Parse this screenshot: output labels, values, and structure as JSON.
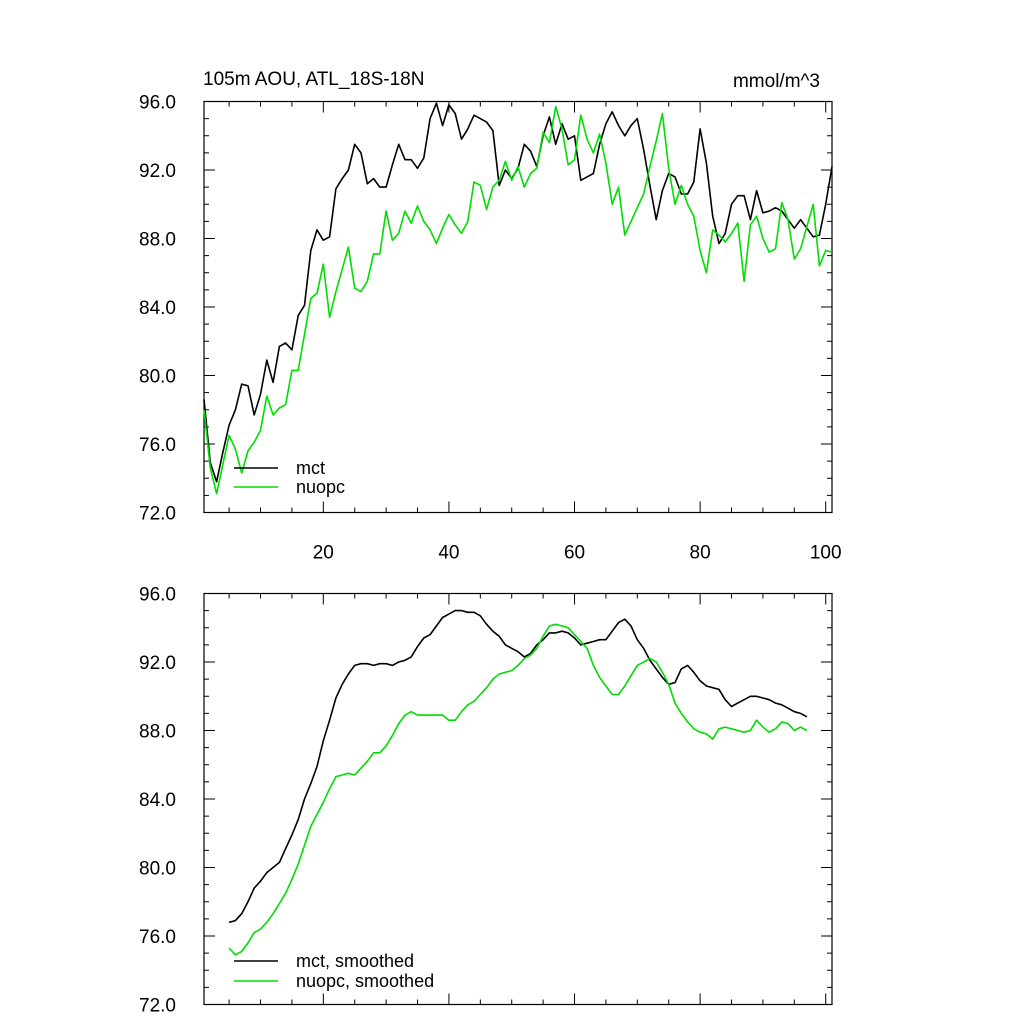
{
  "chart_data": [
    {
      "type": "line",
      "title": "105m AOU, ATL_18S-18N",
      "units": "mmol/m^3",
      "xlim": [
        1,
        101
      ],
      "ylim": [
        72,
        96
      ],
      "x_ticks": [
        20,
        40,
        60,
        80,
        100
      ],
      "x_tick_labels": [
        "20",
        "40",
        "60",
        "80",
        "100"
      ],
      "y_ticks": [
        72,
        76,
        80,
        84,
        88,
        92,
        96
      ],
      "y_tick_labels": [
        "72.0",
        "76.0",
        "80.0",
        "84.0",
        "88.0",
        "92.0",
        "96.0"
      ],
      "grid": false,
      "legend": "bottom-left",
      "series": [
        {
          "name": "mct",
          "color": "#000000",
          "x": [
            1,
            2,
            3,
            4,
            5,
            6,
            7,
            8,
            9,
            10,
            11,
            12,
            13,
            14,
            15,
            16,
            17,
            18,
            19,
            20,
            21,
            22,
            23,
            24,
            25,
            26,
            27,
            28,
            29,
            30,
            31,
            32,
            33,
            34,
            35,
            36,
            37,
            38,
            39,
            40,
            41,
            42,
            43,
            44,
            45,
            46,
            47,
            48,
            49,
            50,
            51,
            52,
            53,
            54,
            55,
            56,
            57,
            58,
            59,
            60,
            61,
            62,
            63,
            64,
            65,
            66,
            67,
            68,
            69,
            70,
            71,
            72,
            73,
            74,
            75,
            76,
            77,
            78,
            79,
            80,
            81,
            82,
            83,
            84,
            85,
            86,
            87,
            88,
            89,
            90,
            91,
            92,
            93,
            94,
            95,
            96,
            97,
            98,
            99,
            100,
            101
          ],
          "values": [
            78.6,
            74.9,
            73.8,
            75.5,
            77.1,
            78.0,
            79.5,
            79.4,
            77.7,
            78.9,
            80.9,
            79.6,
            81.7,
            81.9,
            81.5,
            83.5,
            84.1,
            87.3,
            88.5,
            87.9,
            88.1,
            90.9,
            91.5,
            92.0,
            93.5,
            93.0,
            91.2,
            91.5,
            91.0,
            91.0,
            92.3,
            93.5,
            92.6,
            92.6,
            92.1,
            92.7,
            95.0,
            95.9,
            94.6,
            95.8,
            95.3,
            93.8,
            94.4,
            95.2,
            95.0,
            94.8,
            94.3,
            91.1,
            92.0,
            91.5,
            92.1,
            93.5,
            93.1,
            92.2,
            94.0,
            95.1,
            93.5,
            94.7,
            93.8,
            94.0,
            91.4,
            91.6,
            91.8,
            93.5,
            94.7,
            95.4,
            94.6,
            94.0,
            94.6,
            95.0,
            93.2,
            91.1,
            89.1,
            90.8,
            91.8,
            91.6,
            90.6,
            90.6,
            91.3,
            94.4,
            92.4,
            89.3,
            87.7,
            88.3,
            90.0,
            90.5,
            90.5,
            89.1,
            90.8,
            89.5,
            89.6,
            89.8,
            89.6,
            89.1,
            88.6,
            89.1,
            88.6,
            88.1,
            88.2,
            90.0,
            92.2
          ]
        },
        {
          "name": "nuopc",
          "color": "#00dd00",
          "x": [
            1,
            2,
            3,
            4,
            5,
            6,
            7,
            8,
            9,
            10,
            11,
            12,
            13,
            14,
            15,
            16,
            17,
            18,
            19,
            20,
            21,
            22,
            23,
            24,
            25,
            26,
            27,
            28,
            29,
            30,
            31,
            32,
            33,
            34,
            35,
            36,
            37,
            38,
            39,
            40,
            41,
            42,
            43,
            44,
            45,
            46,
            47,
            48,
            49,
            50,
            51,
            52,
            53,
            54,
            55,
            56,
            57,
            58,
            59,
            60,
            61,
            62,
            63,
            64,
            65,
            66,
            67,
            68,
            69,
            70,
            71,
            72,
            73,
            74,
            75,
            76,
            77,
            78,
            79,
            80,
            81,
            82,
            83,
            84,
            85,
            86,
            87,
            88,
            89,
            90,
            91,
            92,
            93,
            94,
            95,
            96,
            97,
            98,
            99,
            100,
            101
          ],
          "values": [
            78.0,
            74.6,
            73.1,
            74.8,
            76.5,
            75.7,
            74.3,
            75.6,
            76.1,
            76.8,
            78.8,
            77.7,
            78.1,
            78.3,
            80.3,
            80.3,
            82.4,
            84.5,
            84.8,
            86.5,
            83.4,
            84.9,
            86.2,
            87.5,
            85.1,
            84.9,
            85.5,
            87.1,
            87.1,
            89.6,
            87.9,
            88.3,
            89.6,
            88.9,
            89.9,
            89.0,
            88.5,
            87.7,
            88.6,
            89.4,
            88.8,
            88.3,
            89.0,
            91.3,
            91.1,
            89.7,
            91.0,
            91.4,
            92.5,
            91.4,
            92.2,
            91.0,
            91.8,
            92.1,
            94.2,
            93.6,
            95.7,
            94.4,
            92.3,
            92.6,
            95.2,
            93.8,
            93.0,
            94.1,
            92.4,
            90.0,
            91.0,
            88.2,
            89.0,
            89.8,
            90.6,
            92.2,
            93.7,
            95.3,
            92.1,
            90.0,
            91.1,
            90.0,
            89.3,
            87.3,
            86.0,
            88.5,
            88.2,
            87.8,
            88.3,
            88.9,
            85.5,
            88.8,
            89.3,
            88.0,
            87.2,
            87.4,
            90.1,
            89.1,
            86.8,
            87.4,
            88.7,
            90.0,
            86.4,
            87.3,
            87.2
          ]
        }
      ]
    },
    {
      "type": "line",
      "xlim": [
        1,
        101
      ],
      "ylim": [
        72,
        96
      ],
      "y_ticks": [
        72,
        76,
        80,
        84,
        88,
        92,
        96
      ],
      "y_tick_labels": [
        "72.0",
        "76.0",
        "80.0",
        "84.0",
        "88.0",
        "92.0",
        "96.0"
      ],
      "grid": false,
      "legend": "bottom-left",
      "series": [
        {
          "name": "mct, smoothed",
          "color": "#000000",
          "x": [
            5,
            6,
            7,
            8,
            9,
            10,
            11,
            12,
            13,
            14,
            15,
            16,
            17,
            18,
            19,
            20,
            21,
            22,
            23,
            24,
            25,
            26,
            27,
            28,
            29,
            30,
            31,
            32,
            33,
            34,
            35,
            36,
            37,
            38,
            39,
            40,
            41,
            42,
            43,
            44,
            45,
            46,
            47,
            48,
            49,
            50,
            51,
            52,
            53,
            54,
            55,
            56,
            57,
            58,
            59,
            60,
            61,
            62,
            63,
            64,
            65,
            66,
            67,
            68,
            69,
            70,
            71,
            72,
            73,
            74,
            75,
            76,
            77,
            78,
            79,
            80,
            81,
            82,
            83,
            84,
            85,
            86,
            87,
            88,
            89,
            90,
            91,
            92,
            93,
            94,
            95,
            96,
            97
          ],
          "values": [
            76.8,
            76.9,
            77.3,
            78.0,
            78.8,
            79.2,
            79.7,
            80.0,
            80.3,
            81.1,
            81.9,
            82.8,
            84.0,
            84.9,
            85.9,
            87.4,
            88.6,
            89.9,
            90.7,
            91.3,
            91.8,
            91.9,
            91.9,
            91.8,
            91.9,
            91.9,
            91.8,
            92.0,
            92.1,
            92.3,
            92.9,
            93.4,
            93.6,
            94.1,
            94.6,
            94.8,
            95.0,
            95.0,
            94.9,
            94.9,
            94.7,
            94.2,
            93.8,
            93.5,
            93.0,
            92.8,
            92.6,
            92.3,
            92.5,
            93.0,
            93.3,
            93.7,
            93.7,
            93.8,
            93.7,
            93.4,
            93.0,
            93.1,
            93.2,
            93.3,
            93.3,
            93.8,
            94.3,
            94.5,
            94.1,
            93.3,
            92.8,
            92.1,
            91.6,
            91.1,
            90.7,
            90.8,
            91.6,
            91.8,
            91.4,
            90.9,
            90.6,
            90.5,
            90.4,
            89.8,
            89.4,
            89.6,
            89.8,
            90.0,
            90.0,
            89.9,
            89.8,
            89.6,
            89.5,
            89.3,
            89.1,
            89.0,
            88.8
          ]
        },
        {
          "name": "nuopc, smoothed",
          "color": "#00dd00",
          "x": [
            5,
            6,
            7,
            8,
            9,
            10,
            11,
            12,
            13,
            14,
            15,
            16,
            17,
            18,
            19,
            20,
            21,
            22,
            23,
            24,
            25,
            26,
            27,
            28,
            29,
            30,
            31,
            32,
            33,
            34,
            35,
            36,
            37,
            38,
            39,
            40,
            41,
            42,
            43,
            44,
            45,
            46,
            47,
            48,
            49,
            50,
            51,
            52,
            53,
            54,
            55,
            56,
            57,
            58,
            59,
            60,
            61,
            62,
            63,
            64,
            65,
            66,
            67,
            68,
            69,
            70,
            71,
            72,
            73,
            74,
            75,
            76,
            77,
            78,
            79,
            80,
            81,
            82,
            83,
            84,
            85,
            86,
            87,
            88,
            89,
            90,
            91,
            92,
            93,
            94,
            95,
            96,
            97
          ],
          "values": [
            75.3,
            74.9,
            75.1,
            75.6,
            76.2,
            76.4,
            76.8,
            77.3,
            77.9,
            78.5,
            79.3,
            80.2,
            81.3,
            82.4,
            83.1,
            83.8,
            84.6,
            85.3,
            85.4,
            85.5,
            85.4,
            85.8,
            86.2,
            86.7,
            86.7,
            87.1,
            87.7,
            88.4,
            88.9,
            89.1,
            88.9,
            88.9,
            88.9,
            88.9,
            88.9,
            88.6,
            88.6,
            89.1,
            89.5,
            89.7,
            90.1,
            90.5,
            91.0,
            91.3,
            91.4,
            91.5,
            91.8,
            92.2,
            92.4,
            92.8,
            93.5,
            94.1,
            94.2,
            94.1,
            94.0,
            93.6,
            93.2,
            92.8,
            91.8,
            91.1,
            90.6,
            90.1,
            90.1,
            90.6,
            91.2,
            91.8,
            92.0,
            92.2,
            92.0,
            91.4,
            90.7,
            89.6,
            89.0,
            88.5,
            88.1,
            87.9,
            87.8,
            87.5,
            88.1,
            88.2,
            88.1,
            88.0,
            87.9,
            88.0,
            88.6,
            88.2,
            87.9,
            88.1,
            88.5,
            88.4,
            88.0,
            88.2,
            88.0
          ]
        }
      ]
    }
  ]
}
